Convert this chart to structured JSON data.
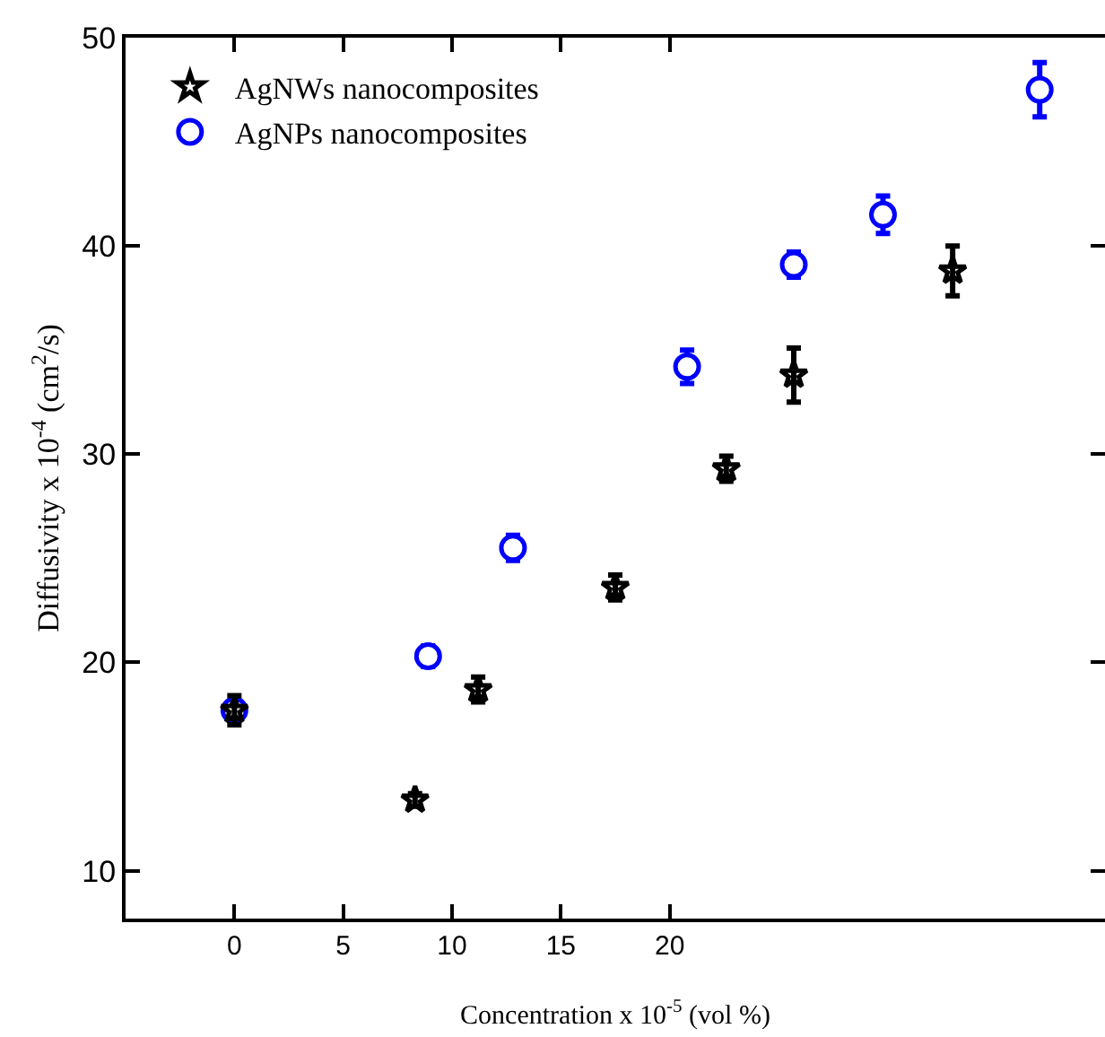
{
  "chart_data": {
    "type": "scatter",
    "xlabel": "Concentration x 10$^{-5}$ (vol %)",
    "ylabel": "Diffusivity x 10$^{-4}$ (cm$^{2}$/s)",
    "xlim": [
      -5,
      40
    ],
    "xticks": [
      0,
      5,
      10,
      15,
      20
    ],
    "ylim": [
      7.7,
      50
    ],
    "yticks": [
      10,
      20,
      30,
      40,
      50
    ],
    "grid": false,
    "legend": "top left",
    "series": [
      {
        "name": "AgNWs nanocomposites",
        "color": "#000000",
        "marker": "star",
        "x": [
          0,
          8.3,
          11.2,
          17.5,
          22.6,
          25.7,
          33.0
        ],
        "values": [
          17.7,
          13.4,
          18.7,
          23.6,
          29.3,
          33.8,
          38.8
        ],
        "errors": [
          0.7,
          0.3,
          0.6,
          0.6,
          0.6,
          1.3,
          1.2
        ]
      },
      {
        "name": "AgNPs nanocomposites",
        "color": "#0000ff",
        "marker": "circle",
        "x": [
          0,
          8.9,
          12.8,
          20.8,
          25.7,
          29.8,
          37.0
        ],
        "values": [
          17.7,
          20.3,
          25.5,
          34.2,
          39.1,
          41.5,
          47.5
        ],
        "errors": [
          null,
          0.5,
          0.6,
          0.8,
          0.6,
          0.9,
          1.3
        ]
      }
    ]
  }
}
